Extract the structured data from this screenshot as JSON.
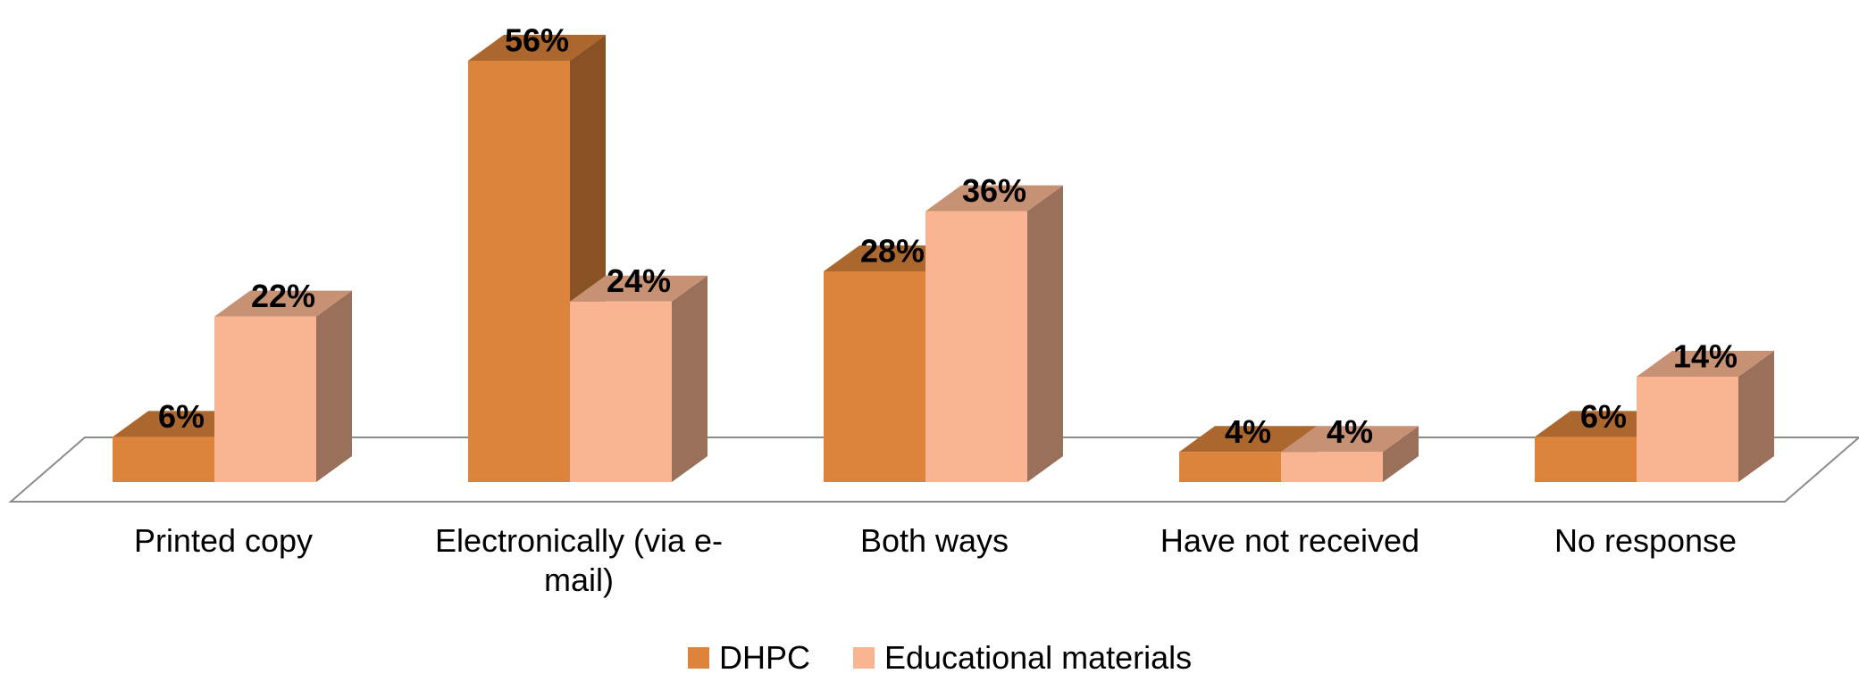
{
  "chart_data": {
    "type": "bar",
    "style": "3d-clustered-column",
    "categories": [
      [
        "Printed copy"
      ],
      [
        "Electronically (via e-",
        "mail)"
      ],
      [
        "Both ways"
      ],
      [
        "Have not received"
      ],
      [
        "No response"
      ]
    ],
    "series": [
      {
        "name": "DHPC",
        "values": [
          6,
          56,
          28,
          4,
          6
        ],
        "labels": [
          "6%",
          "56%",
          "28%",
          "4%",
          "6%"
        ],
        "color": "#DD843C"
      },
      {
        "name": "Educational materials",
        "values": [
          22,
          24,
          36,
          4,
          14
        ],
        "labels": [
          "22%",
          "24%",
          "36%",
          "4%",
          "14%"
        ],
        "color": "#F9B591"
      }
    ],
    "title": "",
    "xlabel": "",
    "ylabel": "",
    "ylim": [
      0,
      60
    ],
    "grid": false,
    "legend_position": "bottom"
  }
}
